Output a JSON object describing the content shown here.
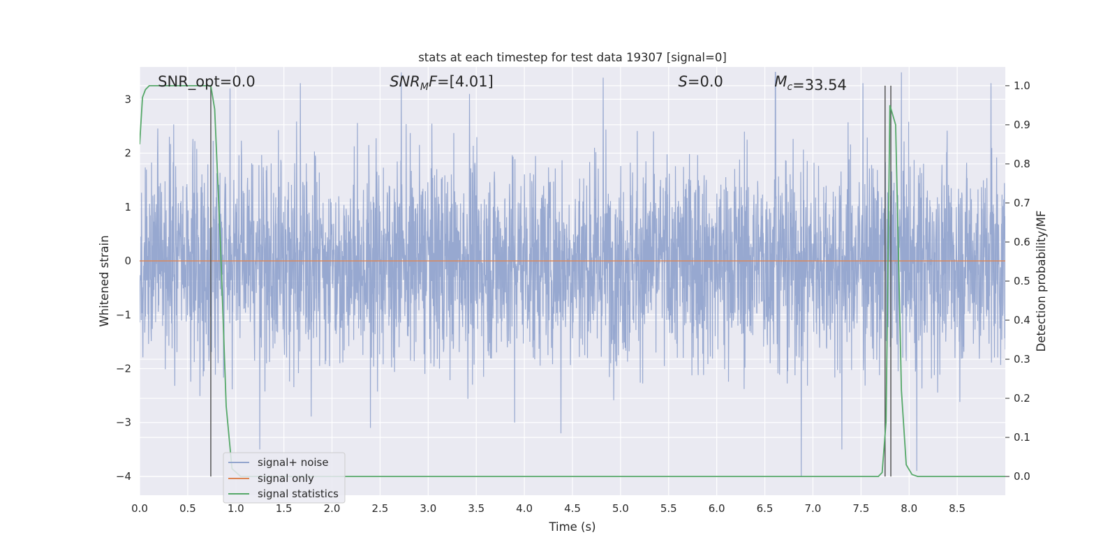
{
  "chart_data": {
    "type": "line",
    "title": "stats at each timestep for test data 19307 [signal=0]",
    "xlabel": "Time (s)",
    "ylabel": "Whitened strain",
    "y2label": "Detection probability/MF",
    "xlim": [
      0,
      9.0
    ],
    "ylim": [
      -4.35,
      3.6
    ],
    "y2lim": [
      -0.048,
      1.048
    ],
    "x_ticks": [
      "0.0",
      "0.5",
      "1.0",
      "1.5",
      "2.0",
      "2.5",
      "3.0",
      "3.5",
      "4.0",
      "4.5",
      "5.0",
      "5.5",
      "6.0",
      "6.5",
      "7.0",
      "7.5",
      "8.0",
      "8.5"
    ],
    "x_tick_values": [
      0,
      0.5,
      1,
      1.5,
      2,
      2.5,
      3,
      3.5,
      4,
      4.5,
      5,
      5.5,
      6,
      6.5,
      7,
      7.5,
      8,
      8.5
    ],
    "y_ticks": [
      "−4",
      "−3",
      "−2",
      "−1",
      "0",
      "1",
      "2",
      "3"
    ],
    "y_tick_values": [
      -4,
      -3,
      -2,
      -1,
      0,
      1,
      2,
      3
    ],
    "y2_ticks": [
      "0.0",
      "0.1",
      "0.2",
      "0.3",
      "0.4",
      "0.5",
      "0.6",
      "0.7",
      "0.8",
      "0.9",
      "1.0"
    ],
    "y2_tick_values": [
      0,
      0.1,
      0.2,
      0.3,
      0.4,
      0.5,
      0.6,
      0.7,
      0.8,
      0.9,
      1.0
    ],
    "grid": true,
    "legend_position": "lower-left",
    "annotations": [
      {
        "label": "SNR_opt",
        "value": "=0.0",
        "x": 0.19
      },
      {
        "label": "SNR",
        "sub": "M",
        "tail": "F",
        "value": "=[4.01]",
        "x": 2.6
      },
      {
        "label": "S",
        "value": "=0.0",
        "x": 5.6
      },
      {
        "label": "M",
        "sub": "c",
        "value": "=33.54",
        "x": 6.6
      }
    ],
    "series": [
      {
        "name": "signal+ noise",
        "color": "#92a4cd",
        "description_values": "dense whitened noise, amplitude mostly within [-2.7, 2.8], rare peaks to 3.5 / -4.0",
        "sample_rate_hz": 4096,
        "duration_s": 9.0,
        "peak_points": [
          [
            0.94,
            3.2
          ],
          [
            1.67,
            3.3
          ],
          [
            2.72,
            3.5
          ],
          [
            3.43,
            3.1
          ],
          [
            4.82,
            3.4
          ],
          [
            6.61,
            3.5
          ],
          [
            7.52,
            3.3
          ],
          [
            7.92,
            3.5
          ],
          [
            8.85,
            3.3
          ],
          [
            1.25,
            -3.5
          ],
          [
            2.4,
            -3.1
          ],
          [
            4.38,
            -3.2
          ],
          [
            6.88,
            -4.0
          ],
          [
            7.3,
            -3.5
          ],
          [
            8.08,
            -3.9
          ],
          [
            3.9,
            -3.0
          ]
        ]
      },
      {
        "name": "signal only",
        "color": "#dd8452",
        "x": [
          0,
          9.0
        ],
        "y": [
          0,
          0
        ]
      },
      {
        "name": "signal statistics",
        "color": "#55a868",
        "axis": "right",
        "x": [
          0,
          0.03,
          0.06,
          0.1,
          0.7,
          0.74,
          0.78,
          0.84,
          0.9,
          0.96,
          1.05,
          7.68,
          7.72,
          7.76,
          7.8,
          7.86,
          7.92,
          7.97,
          8.03,
          8.09,
          8.2,
          9.0
        ],
        "y": [
          0.85,
          0.97,
          0.99,
          1.0,
          1.0,
          1.0,
          0.94,
          0.6,
          0.18,
          0.02,
          0.0,
          0.0,
          0.01,
          0.14,
          0.95,
          0.9,
          0.22,
          0.03,
          0.005,
          0.0,
          0.0,
          0.0
        ]
      }
    ],
    "vertical_markers": [
      {
        "x": 0.74,
        "y2_from": 0.0,
        "y2_to": 1.0,
        "color": "#555555"
      },
      {
        "x": 7.75,
        "y2_from": 0.0,
        "y2_to": 1.0,
        "color": "#555555"
      },
      {
        "x": 7.81,
        "y2_from": 0.0,
        "y2_to": 1.0,
        "color": "#555555"
      }
    ],
    "colors": {
      "background": "#eaeaf2",
      "grid": "#ffffff"
    }
  }
}
